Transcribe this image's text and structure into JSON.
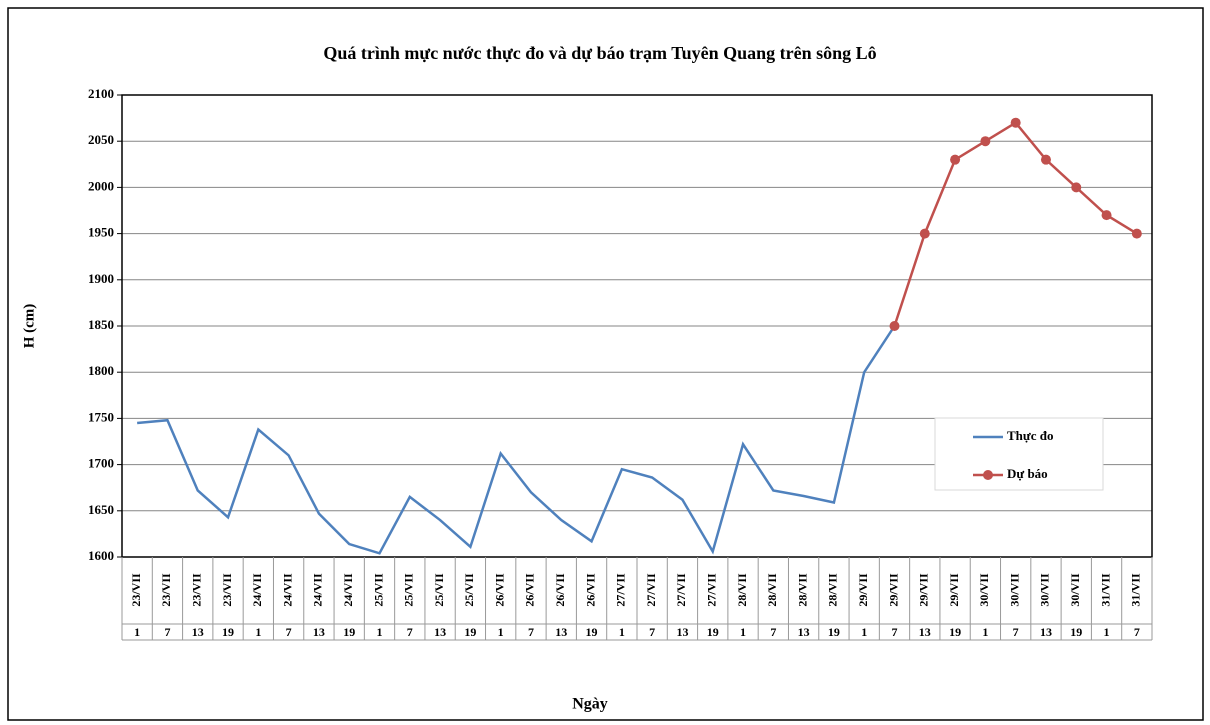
{
  "chart_data": {
    "type": "line",
    "title": "Quá trình mực nước thực đo và dự báo trạm Tuyên Quang trên sông Lô",
    "x_label": "Ngày",
    "y_label": "H (cm)",
    "categories": [
      {
        "day": "23/VII",
        "hour": 1
      },
      {
        "day": "23/VII",
        "hour": 7
      },
      {
        "day": "23/VII",
        "hour": 13
      },
      {
        "day": "23/VII",
        "hour": 19
      },
      {
        "day": "24/VII",
        "hour": 1
      },
      {
        "day": "24/VII",
        "hour": 7
      },
      {
        "day": "24/VII",
        "hour": 13
      },
      {
        "day": "24/VII",
        "hour": 19
      },
      {
        "day": "25/VII",
        "hour": 1
      },
      {
        "day": "25/VII",
        "hour": 7
      },
      {
        "day": "25/VII",
        "hour": 13
      },
      {
        "day": "25/VII",
        "hour": 19
      },
      {
        "day": "26/VII",
        "hour": 1
      },
      {
        "day": "26/VII",
        "hour": 7
      },
      {
        "day": "26/VII",
        "hour": 13
      },
      {
        "day": "26/VII",
        "hour": 19
      },
      {
        "day": "27/VII",
        "hour": 1
      },
      {
        "day": "27/VII",
        "hour": 7
      },
      {
        "day": "27/VII",
        "hour": 13
      },
      {
        "day": "27/VII",
        "hour": 19
      },
      {
        "day": "28/VII",
        "hour": 1
      },
      {
        "day": "28/VII",
        "hour": 7
      },
      {
        "day": "28/VII",
        "hour": 13
      },
      {
        "day": "28/VII",
        "hour": 19
      },
      {
        "day": "29/VII",
        "hour": 1
      },
      {
        "day": "29/VII",
        "hour": 7
      },
      {
        "day": "29/VII",
        "hour": 13
      },
      {
        "day": "29/VII",
        "hour": 19
      },
      {
        "day": "30/VII",
        "hour": 1
      },
      {
        "day": "30/VII",
        "hour": 7
      },
      {
        "day": "30/VII",
        "hour": 13
      },
      {
        "day": "30/VII",
        "hour": 19
      },
      {
        "day": "31/VII",
        "hour": 1
      },
      {
        "day": "31/VII",
        "hour": 7
      }
    ],
    "series": [
      {
        "name": "Thực đo",
        "color": "#4f81bd",
        "markers": false,
        "values": [
          1745,
          1748,
          1672,
          1643,
          1738,
          1710,
          1647,
          1614,
          1604,
          1665,
          1640,
          1611,
          1712,
          1670,
          1640,
          1617,
          1695,
          1686,
          1662,
          1606,
          1722,
          1672,
          1666,
          1659,
          1800,
          1850,
          null,
          null,
          null,
          null,
          null,
          null,
          null,
          null
        ]
      },
      {
        "name": "Dự báo",
        "color": "#c0504d",
        "markers": true,
        "values": [
          null,
          null,
          null,
          null,
          null,
          null,
          null,
          null,
          null,
          null,
          null,
          null,
          null,
          null,
          null,
          null,
          null,
          null,
          null,
          null,
          null,
          null,
          null,
          null,
          null,
          1850,
          1950,
          2030,
          2050,
          2070,
          2030,
          2000,
          1970,
          1950
        ]
      }
    ],
    "ylim": [
      1600,
      2100
    ],
    "yticks": [
      1600,
      1650,
      1700,
      1750,
      1800,
      1850,
      1900,
      1950,
      2000,
      2050,
      2100
    ],
    "grid": true,
    "legend": "right"
  }
}
